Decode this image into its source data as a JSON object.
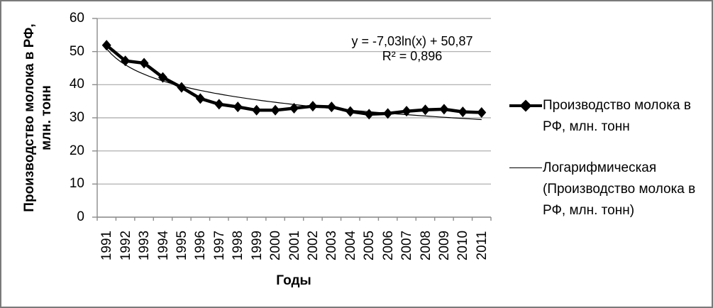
{
  "colors": {
    "series": "#000000",
    "trendline": "#000000",
    "gridline": "#a8a8a8",
    "axis": "#8c8c8c",
    "border": "#7a7a7a",
    "text": "#000000"
  },
  "annotation": {
    "equation": "y = -7,03ln(x) + 50,87",
    "r_squared": "R² = 0,896"
  },
  "chart_data": {
    "type": "line",
    "title": "",
    "xlabel": "Годы",
    "ylabel": "Производство молока в РФ, млн. тонн",
    "categories": [
      "1991",
      "1992",
      "1993",
      "1994",
      "1995",
      "1996",
      "1997",
      "1998",
      "1999",
      "2000",
      "2001",
      "2002",
      "2003",
      "2004",
      "2005",
      "2006",
      "2007",
      "2008",
      "2009",
      "2010",
      "2011"
    ],
    "series": [
      {
        "name": "Производство молока в РФ, млн. тонн",
        "values": [
          51.9,
          47.2,
          46.5,
          42.2,
          39.2,
          35.8,
          34.1,
          33.3,
          32.3,
          32.3,
          32.9,
          33.5,
          33.3,
          31.9,
          31.1,
          31.3,
          32.0,
          32.4,
          32.6,
          31.8,
          31.6
        ],
        "marker": "diamond",
        "line_width": 4.5
      },
      {
        "name": "Логарифмическая (Производство молока в РФ, млн. тонн)",
        "kind": "logarithmic_trendline",
        "coef_a": -7.03,
        "coef_b": 50.87,
        "equation": "y = -7,03ln(x) + 50,87",
        "r2": 0.896,
        "line_width": 1.2
      }
    ],
    "yticks": [
      0,
      10,
      20,
      30,
      40,
      50,
      60
    ],
    "ylim": [
      0,
      60
    ],
    "grid": true,
    "legend_position": "right"
  }
}
